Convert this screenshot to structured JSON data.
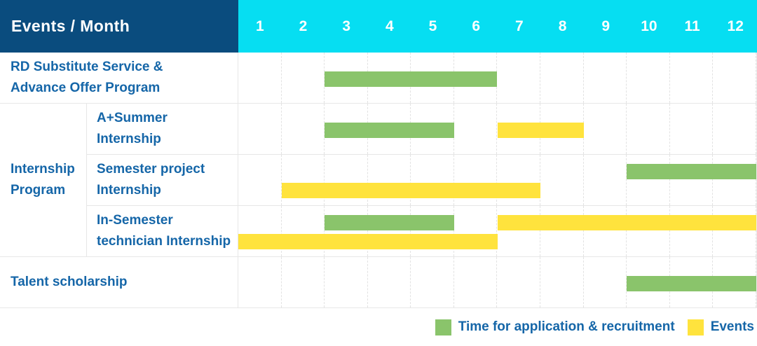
{
  "header": {
    "title": "Events / Month",
    "months": [
      "1",
      "2",
      "3",
      "4",
      "5",
      "6",
      "7",
      "8",
      "9",
      "10",
      "11",
      "12"
    ]
  },
  "group": {
    "label": "Internship Program"
  },
  "legend": {
    "items": [
      {
        "type": "application",
        "label": "Time for application & recruitment"
      },
      {
        "type": "event",
        "label": "Events"
      }
    ]
  },
  "colors": {
    "application": "#8ac46b",
    "event": "#ffe33d",
    "header_bg": "#0a4c7e",
    "months_bg": "#06def2",
    "label_text": "#1566a8"
  },
  "chart_data": {
    "type": "gantt",
    "x_unit": "month",
    "x_range": [
      1,
      12
    ],
    "series_legend": [
      "Time for application & recruitment",
      "Events"
    ],
    "rows": [
      {
        "group": "",
        "label": "RD Substitute Service &\nAdvance Offer Program",
        "bars": [
          {
            "series": "Time for application & recruitment",
            "start": 3,
            "end": 6,
            "lane": 0
          }
        ]
      },
      {
        "group": "Internship Program",
        "label": "A+Summer\nInternship",
        "bars": [
          {
            "series": "Time for application & recruitment",
            "start": 3,
            "end": 5,
            "lane": 0
          },
          {
            "series": "Events",
            "start": 7,
            "end": 8,
            "lane": 0
          }
        ]
      },
      {
        "group": "Internship Program",
        "label": "Semester project\nInternship",
        "bars": [
          {
            "series": "Time for application & recruitment",
            "start": 10,
            "end": 12,
            "lane": 0
          },
          {
            "series": "Events",
            "start": 2,
            "end": 7,
            "lane": 1
          }
        ]
      },
      {
        "group": "Internship Program",
        "label": "In-Semester\ntechnician Internship",
        "bars": [
          {
            "series": "Time for application & recruitment",
            "start": 3,
            "end": 5,
            "lane": 0
          },
          {
            "series": "Events",
            "start": 7,
            "end": 12,
            "lane": 0
          },
          {
            "series": "Events",
            "start": 1,
            "end": 6,
            "lane": 1
          }
        ]
      },
      {
        "group": "",
        "label": "Talent scholarship",
        "bars": [
          {
            "series": "Time for application & recruitment",
            "start": 10,
            "end": 12,
            "lane": 0
          }
        ]
      }
    ]
  }
}
